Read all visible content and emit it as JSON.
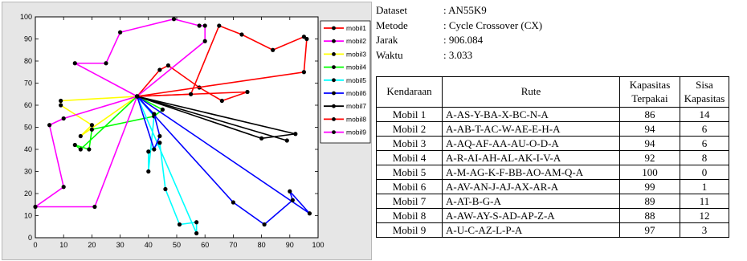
{
  "info": {
    "dataset": {
      "label": "Dataset",
      "value": ": AN55K9"
    },
    "method": {
      "label": "Metode",
      "value": ": Cycle Crossover (CX)"
    },
    "distance": {
      "label": "Jarak",
      "value": ": 906.084"
    },
    "time": {
      "label": "Waktu",
      "value": ": 3.033"
    }
  },
  "table": {
    "headers": {
      "vehicle": "Kendaraan",
      "route": "Rute",
      "used_capacity": "Kapasitas Terpakai",
      "remaining_capacity": "Sisa Kapasitas"
    },
    "rows": [
      {
        "vehicle": "Mobil 1",
        "route": "A-AS-Y-BA-X-BC-N-A",
        "used": "86",
        "remaining": "14"
      },
      {
        "vehicle": "Mobil 2",
        "route": "A-AB-T-AC-W-AE-E-H-A",
        "used": "94",
        "remaining": "6"
      },
      {
        "vehicle": "Mobil 3",
        "route": "A-AQ-AF-AA-AU-O-D-A",
        "used": "94",
        "remaining": "6"
      },
      {
        "vehicle": "Mobil 4",
        "route": "A-R-AI-AH-AL-AK-I-V-A",
        "used": "92",
        "remaining": "8"
      },
      {
        "vehicle": "Mobil 5",
        "route": "A-M-AG-K-F-BB-AO-AM-Q-A",
        "used": "100",
        "remaining": "0"
      },
      {
        "vehicle": "Mobil 6",
        "route": "A-AV-AN-J-AJ-AX-AR-A",
        "used": "99",
        "remaining": "1"
      },
      {
        "vehicle": "Mobil 7",
        "route": "A-AT-B-G-A",
        "used": "89",
        "remaining": "11"
      },
      {
        "vehicle": "Mobil 8",
        "route": "A-AW-AY-S-AD-AP-Z-A",
        "used": "88",
        "remaining": "12"
      },
      {
        "vehicle": "Mobil 9",
        "route": "A-U-C-AZ-L-P-A",
        "used": "97",
        "remaining": "3"
      }
    ]
  },
  "chart_data": {
    "type": "line",
    "title": "",
    "xlabel": "",
    "ylabel": "",
    "xlim": [
      0,
      100
    ],
    "ylim": [
      0,
      100
    ],
    "x_ticks": [
      "0",
      "10",
      "20",
      "30",
      "40",
      "50",
      "60",
      "70",
      "80",
      "90",
      "100"
    ],
    "y_ticks": [
      "0",
      "10",
      "20",
      "30",
      "40",
      "50",
      "60",
      "70",
      "80",
      "90",
      "100"
    ],
    "grid": false,
    "legend_position": "top-right, outside axes",
    "depot": [
      36,
      64
    ],
    "series": [
      {
        "name": "mobil1",
        "color": "#ff0000",
        "points": [
          [
            36,
            64
          ],
          [
            44,
            76
          ],
          [
            47,
            78
          ],
          [
            58,
            68
          ],
          [
            66,
            62
          ],
          [
            75,
            66
          ],
          [
            36,
            64
          ]
        ]
      },
      {
        "name": "mobil2",
        "color": "#ff00ff",
        "points": [
          [
            36,
            64
          ],
          [
            14,
            79
          ],
          [
            25,
            79
          ],
          [
            30,
            93
          ],
          [
            49,
            99
          ],
          [
            58,
            96
          ],
          [
            60,
            96
          ],
          [
            60,
            89
          ],
          [
            36,
            64
          ]
        ]
      },
      {
        "name": "mobil3",
        "color": "#ffff00",
        "points": [
          [
            36,
            64
          ],
          [
            9,
            62
          ],
          [
            9,
            60
          ],
          [
            20,
            51
          ],
          [
            16,
            46
          ],
          [
            36,
            64
          ]
        ]
      },
      {
        "name": "mobil4",
        "color": "#00ff00",
        "points": [
          [
            36,
            64
          ],
          [
            16,
            40
          ],
          [
            14,
            42
          ],
          [
            19,
            40
          ],
          [
            20,
            49
          ],
          [
            42,
            55
          ],
          [
            45,
            58
          ],
          [
            36,
            64
          ]
        ]
      },
      {
        "name": "mobil5",
        "color": "#00ffff",
        "points": [
          [
            36,
            64
          ],
          [
            42,
            55
          ],
          [
            40,
            30
          ],
          [
            40,
            39
          ],
          [
            44,
            43
          ],
          [
            46,
            22
          ],
          [
            51,
            6
          ],
          [
            57,
            7
          ],
          [
            57,
            2
          ],
          [
            36,
            64
          ]
        ]
      },
      {
        "name": "mobil6",
        "color": "#0000ff",
        "points": [
          [
            36,
            64
          ],
          [
            42,
            40
          ],
          [
            44,
            46
          ],
          [
            42,
            56
          ],
          [
            36,
            64
          ],
          [
            70,
            16
          ],
          [
            81,
            6
          ],
          [
            91,
            17
          ],
          [
            90,
            21
          ],
          [
            97,
            11
          ],
          [
            36,
            64
          ]
        ]
      },
      {
        "name": "mobil7",
        "color": "#000000",
        "points": [
          [
            36,
            64
          ],
          [
            80,
            45
          ],
          [
            92,
            47
          ],
          [
            36,
            64
          ],
          [
            89,
            44
          ],
          [
            36,
            64
          ]
        ]
      },
      {
        "name": "mobil8",
        "color": "#ff0000",
        "points": [
          [
            36,
            64
          ],
          [
            55,
            65
          ],
          [
            65,
            96
          ],
          [
            73,
            92
          ],
          [
            84,
            85
          ],
          [
            95,
            91
          ],
          [
            96,
            90
          ],
          [
            95,
            75
          ],
          [
            36,
            64
          ]
        ]
      },
      {
        "name": "mobil9",
        "color": "#ff00ff",
        "points": [
          [
            36,
            64
          ],
          [
            10,
            54
          ],
          [
            5,
            51
          ],
          [
            10,
            23
          ],
          [
            0,
            14
          ],
          [
            21,
            14
          ],
          [
            36,
            64
          ]
        ]
      }
    ]
  }
}
